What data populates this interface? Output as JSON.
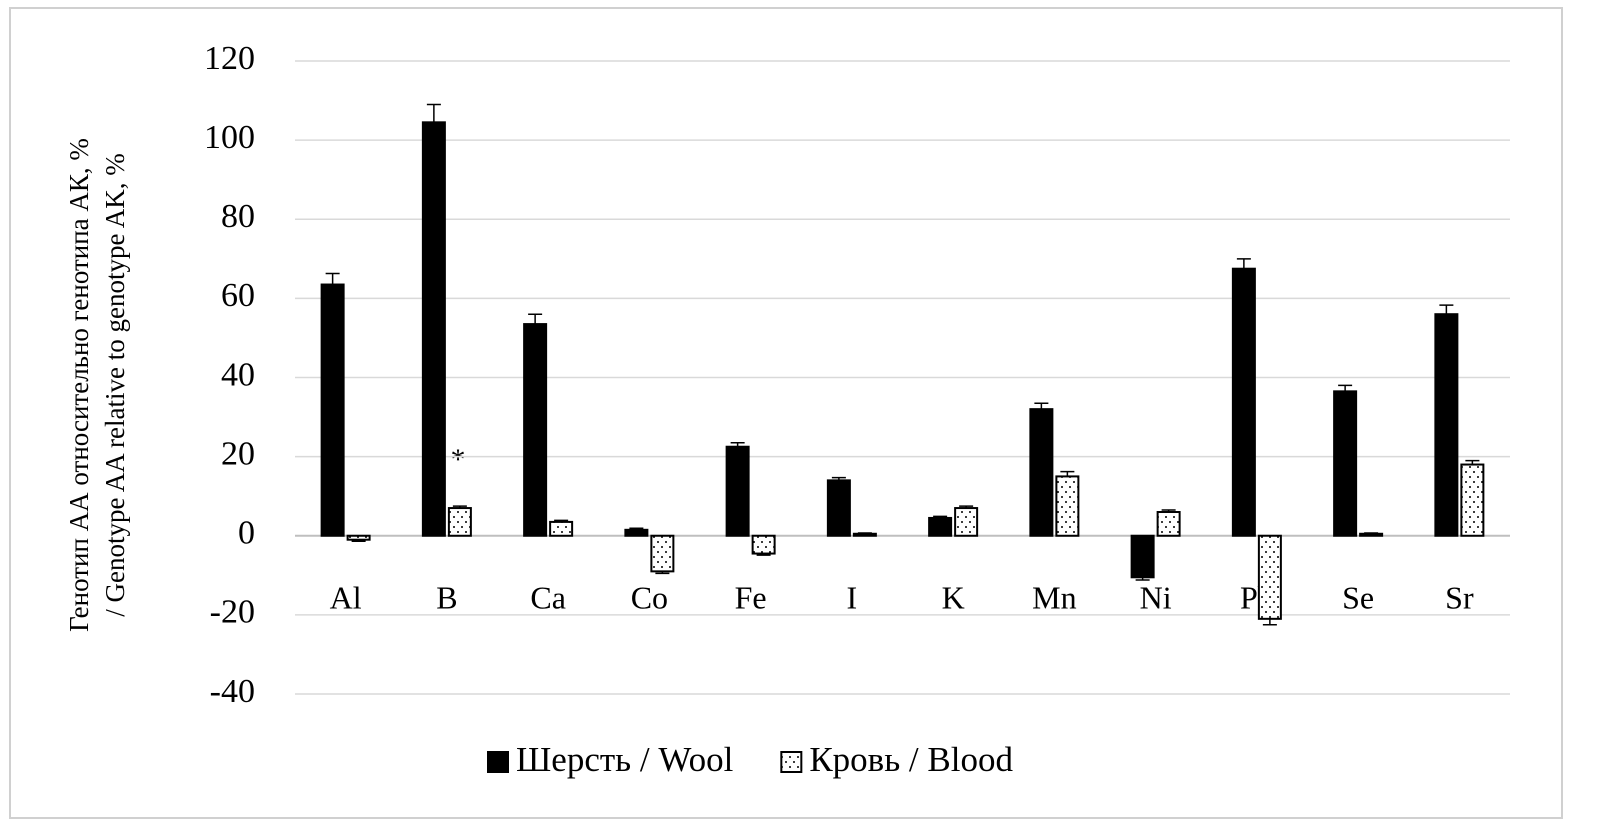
{
  "chart_data": {
    "type": "bar",
    "y_label_lines": [
      "Генотип АА  относительно генотипа АК, %",
      "/ Genotype AA relative to genotype AK, %"
    ],
    "categories": [
      "Al",
      "B",
      "Ca",
      "Co",
      "Fe",
      "I",
      "K",
      "Mn",
      "Ni",
      "Pb",
      "Se",
      "Sr"
    ],
    "series": [
      {
        "name": "Шерсть / Wool",
        "color": "#000000",
        "pattern": "solid",
        "values": [
          63.5,
          104.5,
          53.5,
          1.5,
          22.5,
          14,
          4.5,
          32,
          -10.5,
          67.5,
          36.5,
          56
        ],
        "errors": [
          2.8,
          4.5,
          2.5,
          0.4,
          1,
          0.7,
          0.4,
          1.5,
          0.7,
          2.5,
          1.5,
          2.3
        ]
      },
      {
        "name": "Кровь / Blood",
        "color": "#ffffff",
        "pattern": "dots",
        "values": [
          -1,
          7,
          3.5,
          -9,
          -4.5,
          0.5,
          7,
          15,
          6,
          -21,
          0.5,
          18
        ],
        "errors": [
          0.4,
          0.5,
          0.4,
          0.5,
          0.4,
          0.2,
          0.5,
          1.2,
          0.5,
          1.5,
          0.2,
          1
        ]
      }
    ],
    "annotations": [
      "*"
    ],
    "ylim": [
      -40,
      120
    ],
    "yticks": [
      -40,
      -20,
      0,
      20,
      40,
      60,
      80,
      100,
      120
    ],
    "grid": true,
    "legend": "bottom"
  }
}
